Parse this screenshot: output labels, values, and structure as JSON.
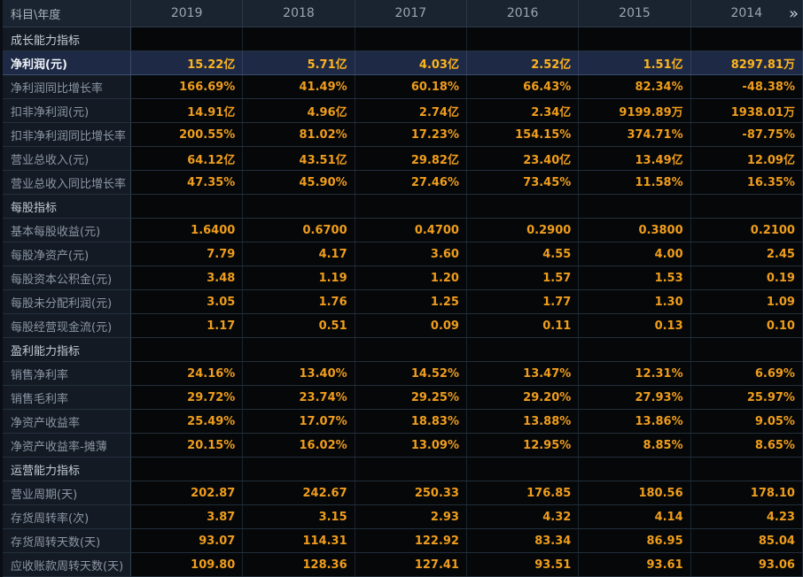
{
  "header": {
    "label": "科目\\年度",
    "years": [
      "2019",
      "2018",
      "2017",
      "2016",
      "2015",
      "2014"
    ],
    "more_icon": "»"
  },
  "sections": [
    {
      "title": "成长能力指标",
      "rows": [
        {
          "label": "净利润(元)",
          "highlight": true,
          "values": [
            "15.22亿",
            "5.71亿",
            "4.03亿",
            "2.52亿",
            "1.51亿",
            "8297.81万"
          ]
        },
        {
          "label": "净利润同比增长率",
          "values": [
            "166.69%",
            "41.49%",
            "60.18%",
            "66.43%",
            "82.34%",
            "-48.38%"
          ]
        },
        {
          "label": "扣非净利润(元)",
          "values": [
            "14.91亿",
            "4.96亿",
            "2.74亿",
            "2.34亿",
            "9199.89万",
            "1938.01万"
          ]
        },
        {
          "label": "扣非净利润同比增长率",
          "values": [
            "200.55%",
            "81.02%",
            "17.23%",
            "154.15%",
            "374.71%",
            "-87.75%"
          ]
        },
        {
          "label": "营业总收入(元)",
          "values": [
            "64.12亿",
            "43.51亿",
            "29.82亿",
            "23.40亿",
            "13.49亿",
            "12.09亿"
          ]
        },
        {
          "label": "营业总收入同比增长率",
          "values": [
            "47.35%",
            "45.90%",
            "27.46%",
            "73.45%",
            "11.58%",
            "16.35%"
          ]
        }
      ]
    },
    {
      "title": "每股指标",
      "rows": [
        {
          "label": "基本每股收益(元)",
          "values": [
            "1.6400",
            "0.6700",
            "0.4700",
            "0.2900",
            "0.3800",
            "0.2100"
          ]
        },
        {
          "label": "每股净资产(元)",
          "values": [
            "7.79",
            "4.17",
            "3.60",
            "4.55",
            "4.00",
            "2.45"
          ]
        },
        {
          "label": "每股资本公积金(元)",
          "values": [
            "3.48",
            "1.19",
            "1.20",
            "1.57",
            "1.53",
            "0.19"
          ]
        },
        {
          "label": "每股未分配利润(元)",
          "values": [
            "3.05",
            "1.76",
            "1.25",
            "1.77",
            "1.30",
            "1.09"
          ]
        },
        {
          "label": "每股经营现金流(元)",
          "values": [
            "1.17",
            "0.51",
            "0.09",
            "0.11",
            "0.13",
            "0.10"
          ]
        }
      ]
    },
    {
      "title": "盈利能力指标",
      "rows": [
        {
          "label": "销售净利率",
          "values": [
            "24.16%",
            "13.40%",
            "14.52%",
            "13.47%",
            "12.31%",
            "6.69%"
          ]
        },
        {
          "label": "销售毛利率",
          "values": [
            "29.72%",
            "23.74%",
            "29.25%",
            "29.20%",
            "27.93%",
            "25.97%"
          ]
        },
        {
          "label": "净资产收益率",
          "values": [
            "25.49%",
            "17.07%",
            "18.83%",
            "13.88%",
            "13.86%",
            "9.05%"
          ]
        },
        {
          "label": "净资产收益率-摊薄",
          "values": [
            "20.15%",
            "16.02%",
            "13.09%",
            "12.95%",
            "8.85%",
            "8.65%"
          ]
        }
      ]
    },
    {
      "title": "运营能力指标",
      "rows": [
        {
          "label": "营业周期(天)",
          "values": [
            "202.87",
            "242.67",
            "250.33",
            "176.85",
            "180.56",
            "178.10"
          ]
        },
        {
          "label": "存货周转率(次)",
          "values": [
            "3.87",
            "3.15",
            "2.93",
            "4.32",
            "4.14",
            "4.23"
          ]
        },
        {
          "label": "存货周转天数(天)",
          "values": [
            "93.07",
            "114.31",
            "122.92",
            "83.34",
            "86.95",
            "85.04"
          ]
        },
        {
          "label": "应收账款周转天数(天)",
          "values": [
            "109.80",
            "128.36",
            "127.41",
            "93.51",
            "93.61",
            "93.06"
          ]
        }
      ]
    }
  ],
  "colors": {
    "header_bg": "#1a2330",
    "label_bg": "#131a24",
    "cell_bg": "#050708",
    "highlight_bg": "#1e2a45",
    "border": "#242f3c",
    "value": "#f09d1d",
    "highlight_value": "#ffb41e",
    "label_text": "#8b97a4",
    "section_text": "#c4cdd7",
    "header_text": "#9aa5b1"
  }
}
